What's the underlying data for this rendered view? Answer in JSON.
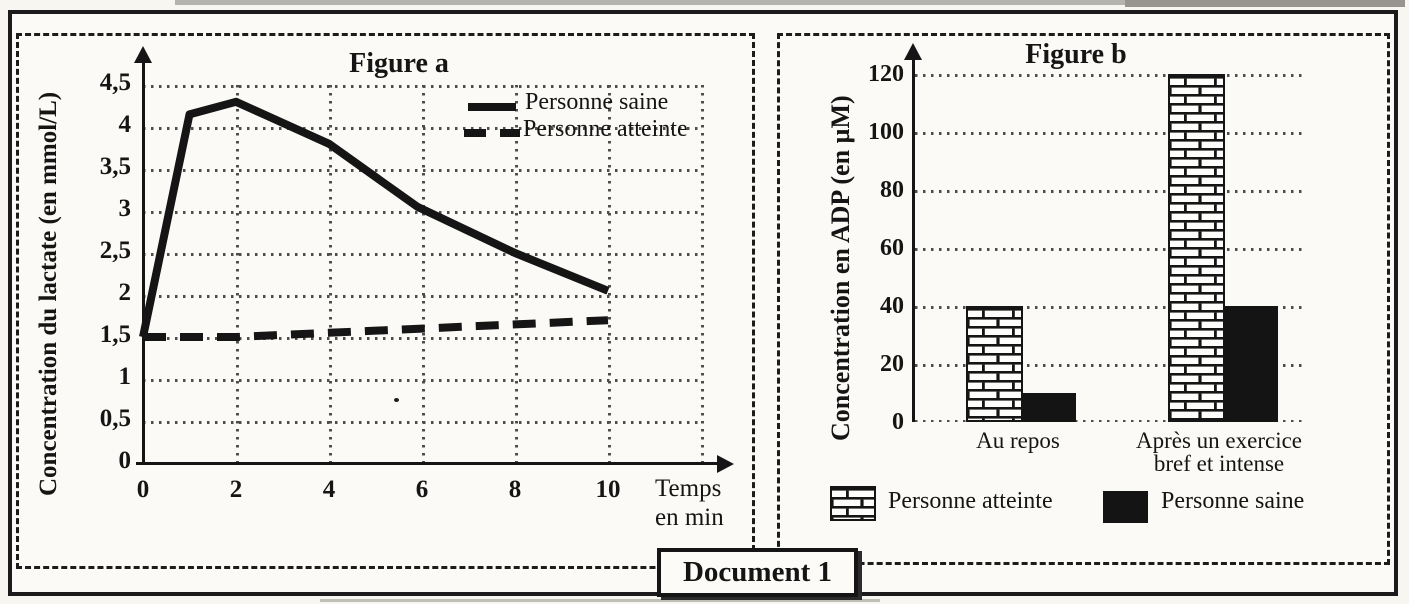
{
  "colors": {
    "ink": "#151515",
    "paper": "#fbfaf6",
    "grid": "#4d4d4d"
  },
  "document_label": "Document 1",
  "figure_a": {
    "title": "Figure a",
    "y_axis_title": "Concentration du lactate  (en mmol/L)",
    "x_axis_title_line1": "Temps",
    "x_axis_title_line2": "en min",
    "y_tick_labels": [
      "4,5",
      "4",
      "3,5",
      "3",
      "2,5",
      "2",
      "1,5",
      "1",
      "0,5",
      "0"
    ],
    "x_tick_labels": [
      "0",
      "2",
      "4",
      "6",
      "8",
      "10"
    ],
    "legend": {
      "saine": "Personne saine",
      "atteinte": "Personne atteinte"
    },
    "chart_data": {
      "type": "line",
      "title": "Figure a",
      "xlabel": "Temps en min",
      "ylabel": "Concentration du lactate (en mmol/L)",
      "xlim": [
        0,
        10
      ],
      "ylim": [
        0,
        4.5
      ],
      "x_ticks": [
        0,
        2,
        4,
        6,
        8,
        10
      ],
      "y_ticks": [
        0,
        0.5,
        1,
        1.5,
        2,
        2.5,
        3,
        3.5,
        4,
        4.5
      ],
      "grid": "dotted",
      "legend_position": "top-right",
      "series": [
        {
          "name": "Personne saine",
          "line_style": "solid",
          "x": [
            0,
            1,
            2,
            2.6,
            4,
            5.9,
            8,
            10
          ],
          "y": [
            1.5,
            4.15,
            4.3,
            4.15,
            3.8,
            3.05,
            2.5,
            2.05
          ]
        },
        {
          "name": "Personne atteinte",
          "line_style": "dashed",
          "x": [
            0,
            2,
            4,
            6,
            8,
            10
          ],
          "y": [
            1.5,
            1.5,
            1.55,
            1.6,
            1.65,
            1.7
          ]
        }
      ]
    }
  },
  "figure_b": {
    "title": "Figure b",
    "y_axis_title": "Concentration en ADP (en µM)",
    "y_tick_labels": [
      "0",
      "20",
      "40",
      "60",
      "80",
      "100",
      "120"
    ],
    "categories": [
      {
        "line1": "Au repos",
        "line2": ""
      },
      {
        "line1": "Après un exercice",
        "line2": "bref et intense"
      }
    ],
    "legend": {
      "atteinte": "Personne atteinte",
      "saine": "Personne saine"
    },
    "chart_data": {
      "type": "bar",
      "title": "Figure b",
      "ylabel": "Concentration en ADP (en µM)",
      "ylim": [
        0,
        120
      ],
      "y_ticks": [
        0,
        20,
        40,
        60,
        80,
        100,
        120
      ],
      "grid": "dotted-horizontal",
      "categories": [
        "Au repos",
        "Après un exercice bref et intense"
      ],
      "series": [
        {
          "name": "Personne atteinte",
          "fill": "brick-hatch",
          "values": [
            40,
            120
          ]
        },
        {
          "name": "Personne saine",
          "fill": "solid-black",
          "values": [
            10,
            40
          ]
        }
      ]
    }
  }
}
